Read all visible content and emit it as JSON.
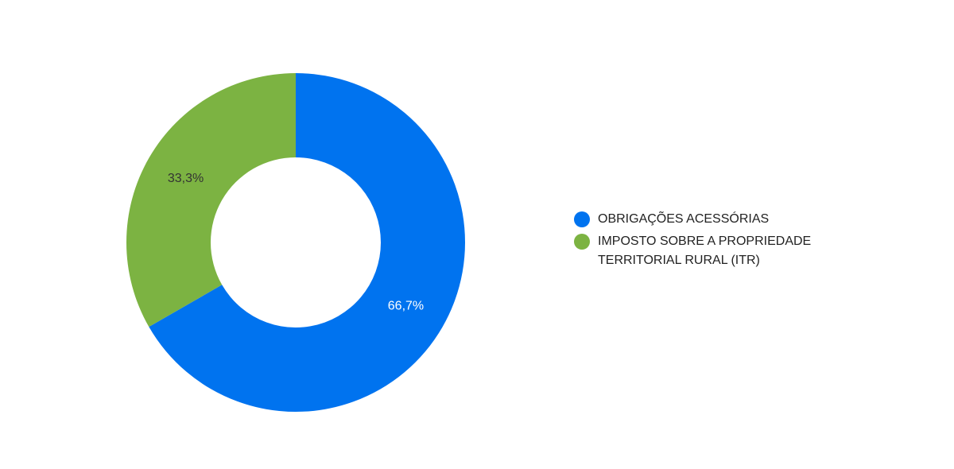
{
  "chart_data": {
    "type": "donut",
    "categories": [
      "OBRIGAÇÕES ACESSÓRIAS",
      "IMPOSTO SOBRE A PROPRIEDADE TERRITORIAL RURAL (ITR)"
    ],
    "values": [
      66.7,
      33.3
    ],
    "value_labels": [
      "66,7%",
      "33,3%"
    ],
    "colors": [
      "#0073ef",
      "#7cb342"
    ]
  }
}
